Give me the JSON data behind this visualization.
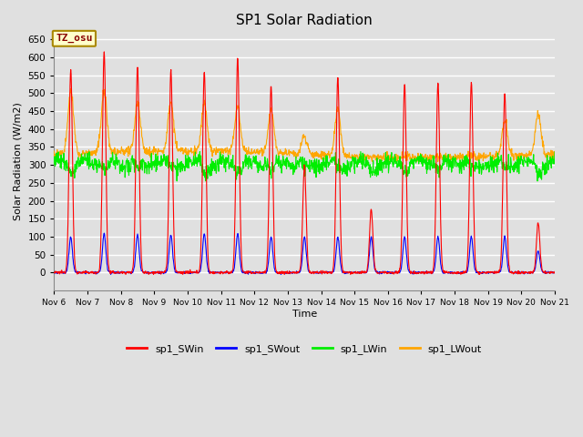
{
  "title": "SP1 Solar Radiation",
  "xlabel": "Time",
  "ylabel": "Solar Radiation (W/m2)",
  "ylim": [
    -50,
    670
  ],
  "yticks": [
    0,
    50,
    100,
    150,
    200,
    250,
    300,
    350,
    400,
    450,
    500,
    550,
    600,
    650
  ],
  "background_color": "#e0e0e0",
  "plot_bg_color": "#e0e0e0",
  "grid_color": "white",
  "annotation_text": "TZ_osu",
  "annotation_bg": "#ffffcc",
  "annotation_border": "#aa8800",
  "colors": {
    "SWin": "#ff0000",
    "SWout": "#0000ff",
    "LWin": "#00ee00",
    "LWout": "#ffa500"
  },
  "legend_labels": [
    "sp1_SWin",
    "sp1_SWout",
    "sp1_LWin",
    "sp1_LWout"
  ],
  "x_start_day": 6,
  "x_end_day": 21,
  "x_ticks": [
    6,
    7,
    8,
    9,
    10,
    11,
    12,
    13,
    14,
    15,
    16,
    17,
    18,
    19,
    20,
    21
  ],
  "x_tick_labels": [
    "Nov 6",
    "Nov 7",
    "Nov 8",
    "Nov 9",
    "Nov 10",
    "Nov 11",
    "Nov 12",
    "Nov 13",
    "Nov 14",
    "Nov 15",
    "Nov 16",
    "Nov 17",
    "Nov 18",
    "Nov 19",
    "Nov 20",
    "Nov 21"
  ],
  "figsize": [
    6.4,
    4.8
  ],
  "dpi": 100
}
